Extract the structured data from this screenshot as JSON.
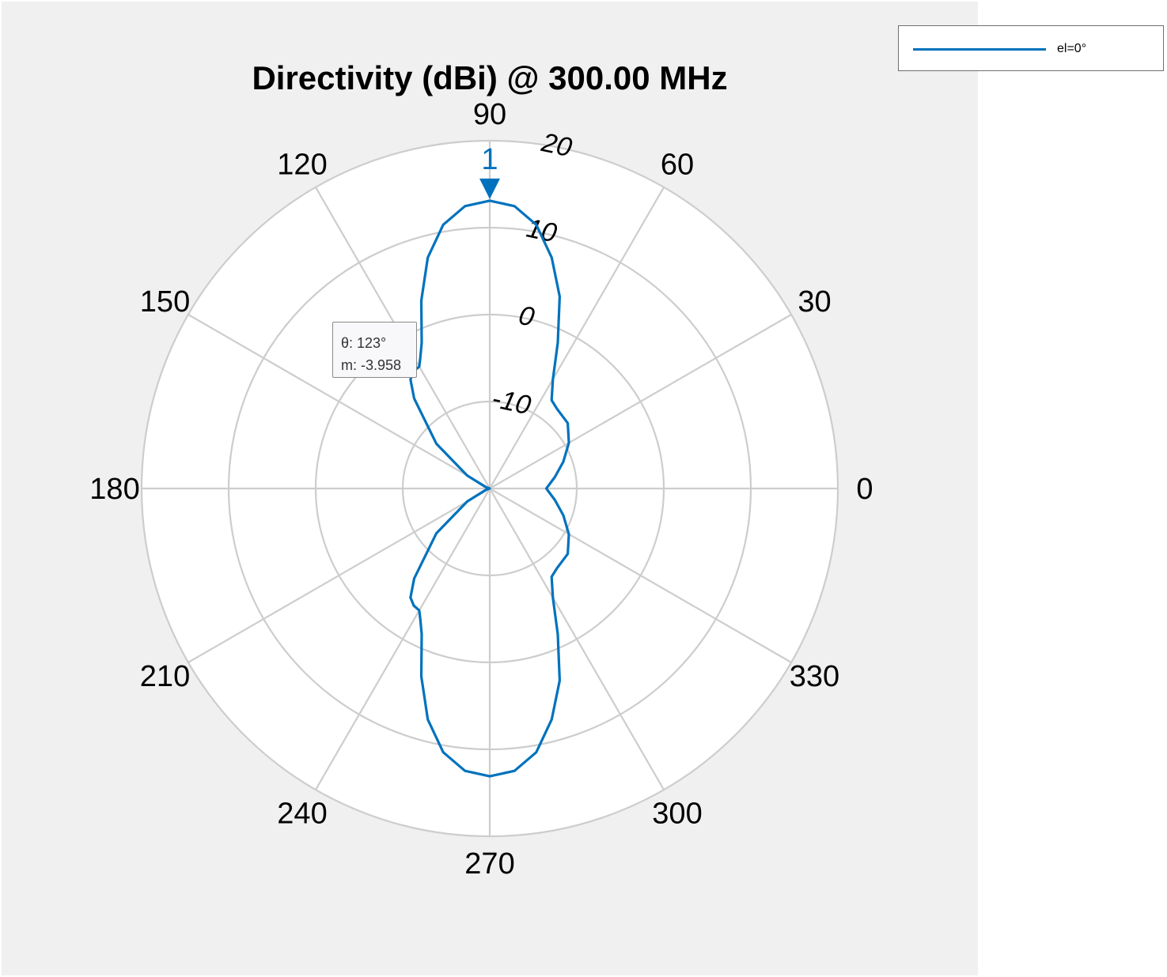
{
  "chart_data": {
    "type": "polar-line",
    "title": "Directivity (dBi) @ 300.00 MHz",
    "angle_ticks": [
      "0",
      "30",
      "60",
      "90",
      "120",
      "150",
      "180",
      "210",
      "240",
      "270",
      "300",
      "330"
    ],
    "radial_ticks": [
      "-10",
      "0",
      "10",
      "20"
    ],
    "radial_range": [
      -20,
      20
    ],
    "grid": true,
    "legend": {
      "position": "top-right",
      "entries": [
        "el=0°"
      ]
    },
    "series": [
      {
        "name": "el=0°",
        "color": "#0072bd",
        "points": [
          [
            0,
            -13.5
          ],
          [
            10,
            -12.4
          ],
          [
            20,
            -11.0
          ],
          [
            30,
            -9.5
          ],
          [
            40,
            -8.3
          ],
          [
            50,
            -8.0
          ],
          [
            55,
            -7.6
          ],
          [
            60,
            -5.5
          ],
          [
            65,
            -1.5
          ],
          [
            70,
            3.5
          ],
          [
            75,
            7.5
          ],
          [
            80,
            10.8
          ],
          [
            85,
            12.6
          ],
          [
            90,
            13.1
          ],
          [
            95,
            12.6
          ],
          [
            100,
            10.8
          ],
          [
            105,
            7.5
          ],
          [
            110,
            3.0
          ],
          [
            115,
            -1.5
          ],
          [
            118,
            -3.0
          ],
          [
            120,
            -3.8
          ],
          [
            123,
            -3.958
          ],
          [
            126,
            -4.5
          ],
          [
            130,
            -6.5
          ],
          [
            140,
            -12.0
          ],
          [
            150,
            -17.0
          ],
          [
            160,
            -19.5
          ],
          [
            180,
            -20
          ],
          [
            200,
            -19.5
          ],
          [
            210,
            -17.0
          ],
          [
            220,
            -12.0
          ],
          [
            230,
            -6.5
          ],
          [
            234,
            -4.5
          ],
          [
            237,
            -3.958
          ],
          [
            240,
            -3.8
          ],
          [
            242,
            -3.0
          ],
          [
            245,
            -1.5
          ],
          [
            250,
            3.0
          ],
          [
            255,
            7.5
          ],
          [
            260,
            10.8
          ],
          [
            265,
            12.6
          ],
          [
            270,
            13.1
          ],
          [
            275,
            12.6
          ],
          [
            280,
            10.8
          ],
          [
            285,
            7.5
          ],
          [
            290,
            3.5
          ],
          [
            295,
            -1.5
          ],
          [
            300,
            -5.5
          ],
          [
            305,
            -7.6
          ],
          [
            310,
            -8.0
          ],
          [
            320,
            -8.3
          ],
          [
            330,
            -9.5
          ],
          [
            340,
            -11.0
          ],
          [
            350,
            -12.4
          ],
          [
            360,
            -13.5
          ]
        ]
      }
    ],
    "marker": {
      "label": "1",
      "theta": 90
    },
    "datatip": {
      "theta": 123,
      "line1": "θ: 123°",
      "line2": "m: -3.958"
    }
  }
}
